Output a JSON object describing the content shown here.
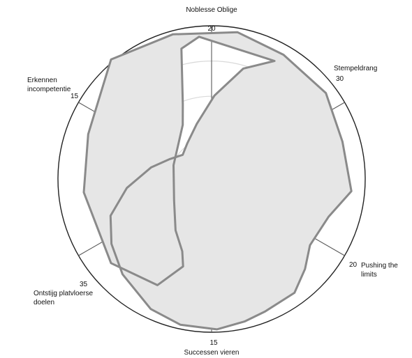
{
  "chart_data": {
    "type": "radar",
    "categories": [
      [
        "Noblesse Oblige"
      ],
      [
        "Stempeldrang"
      ],
      [
        "Pushing the",
        "limits"
      ],
      [
        "Successen vieren"
      ],
      [
        "Ontstijg platvloerse",
        "doelen"
      ],
      [
        "Erkennen",
        "incompetentie"
      ]
    ],
    "values": [
      20,
      30,
      20,
      15,
      35,
      15
    ],
    "ring_count": 4,
    "grid": true,
    "legend": "none"
  }
}
